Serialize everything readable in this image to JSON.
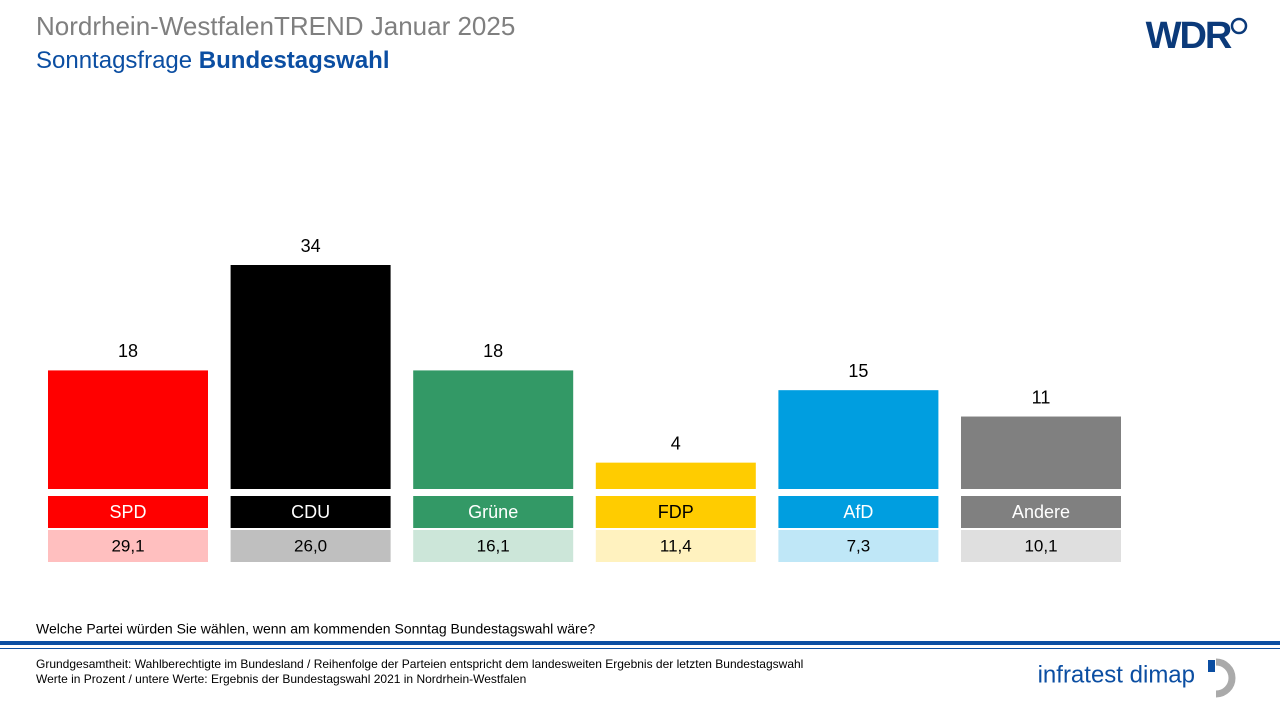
{
  "chart_data": {
    "type": "bar",
    "title": "Nordrhein-WestfalenTREND Januar 2025",
    "subtitle": "Sonntagsfrage",
    "subtitle_emphasis": "Bundestagswahl",
    "categories": [
      "SPD",
      "CDU",
      "Grüne",
      "FDP",
      "AfD",
      "Andere"
    ],
    "values": [
      18,
      34,
      18,
      4,
      15,
      11
    ],
    "colors": [
      "#ff0000",
      "#000000",
      "#339966",
      "#ffcc00",
      "#009ee0",
      "#808080"
    ],
    "previous": {
      "values": [
        29.1,
        26.0,
        16.1,
        11.4,
        7.3,
        10.1
      ],
      "value_labels": [
        "29,1",
        "26,0",
        "16,1",
        "11,4",
        "7,3",
        "10,1"
      ],
      "colors": [
        "#ffbfbf",
        "#bfbfbf",
        "#cce6d9",
        "#fff2bf",
        "#bfe7f7",
        "#dfdfdf"
      ]
    },
    "question": "Welche Partei würden Sie wählen, wenn am kommenden Sonntag Bundestagswahl wäre?",
    "notes": [
      "Grundgesamtheit: Wahlberechtigte im Bundesland / Reihenfolge der Parteien entspricht dem landesweiten Ergebnis der letzten Bundestagswahl",
      "Werte in Prozent / untere Werte: Ergebnis der Bundestagswahl 2021 in Nordrhein-Westfalen"
    ],
    "logo": "WDR",
    "source_logo": "infratest dimap"
  }
}
